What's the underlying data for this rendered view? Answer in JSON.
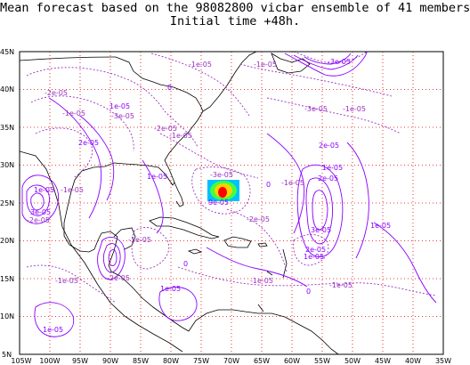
{
  "title_line1": "Mean forecast based on the 98082800 vicbar ensemble of 41 members.",
  "title_line2": "Initial time +48h.",
  "lat_labels": [
    "5N",
    "10N",
    "15N",
    "20N",
    "25N",
    "30N",
    "35N",
    "40N",
    "45N"
  ],
  "lon_labels": [
    "105W",
    "100W",
    "95W",
    "90W",
    "85W",
    "80W",
    "75W",
    "70W",
    "65W",
    "60W",
    "55W",
    "50W",
    "45W",
    "40W",
    "35W"
  ],
  "contour_labels": [
    "-1e-05",
    "-1e-05",
    "-3e-05",
    "-2e-05",
    "0",
    "-1e-05",
    "1e-05",
    "-3e-05",
    "-1e-05",
    "-3e-05",
    "-2e-05",
    "2e-05",
    "-1e-05",
    "2e-05",
    "1e-05",
    "-3e-05",
    "1e-05",
    "0",
    "-1e-05",
    "1e-05",
    "2e-05",
    "-1e-05",
    "3e-05",
    "-2e-05",
    "9e-05",
    "-2e-05",
    "3e-05",
    "-1e-05",
    "-1e-05",
    "0",
    "-2e-05",
    "1e-05",
    "-1e-05",
    "2e-05",
    "-1e-05",
    "1e-05",
    "0",
    "1e-05",
    "1e-05"
  ],
  "colors": {
    "positive_contour": "#8b00ff",
    "negative_contour": "#9a30c0",
    "grid": "#e00000",
    "coast": "#000000",
    "peak_center": "#ff0000",
    "peak_ring1": "#ffd000",
    "peak_ring2": "#40ff40",
    "peak_ring3": "#00c0ff"
  }
}
